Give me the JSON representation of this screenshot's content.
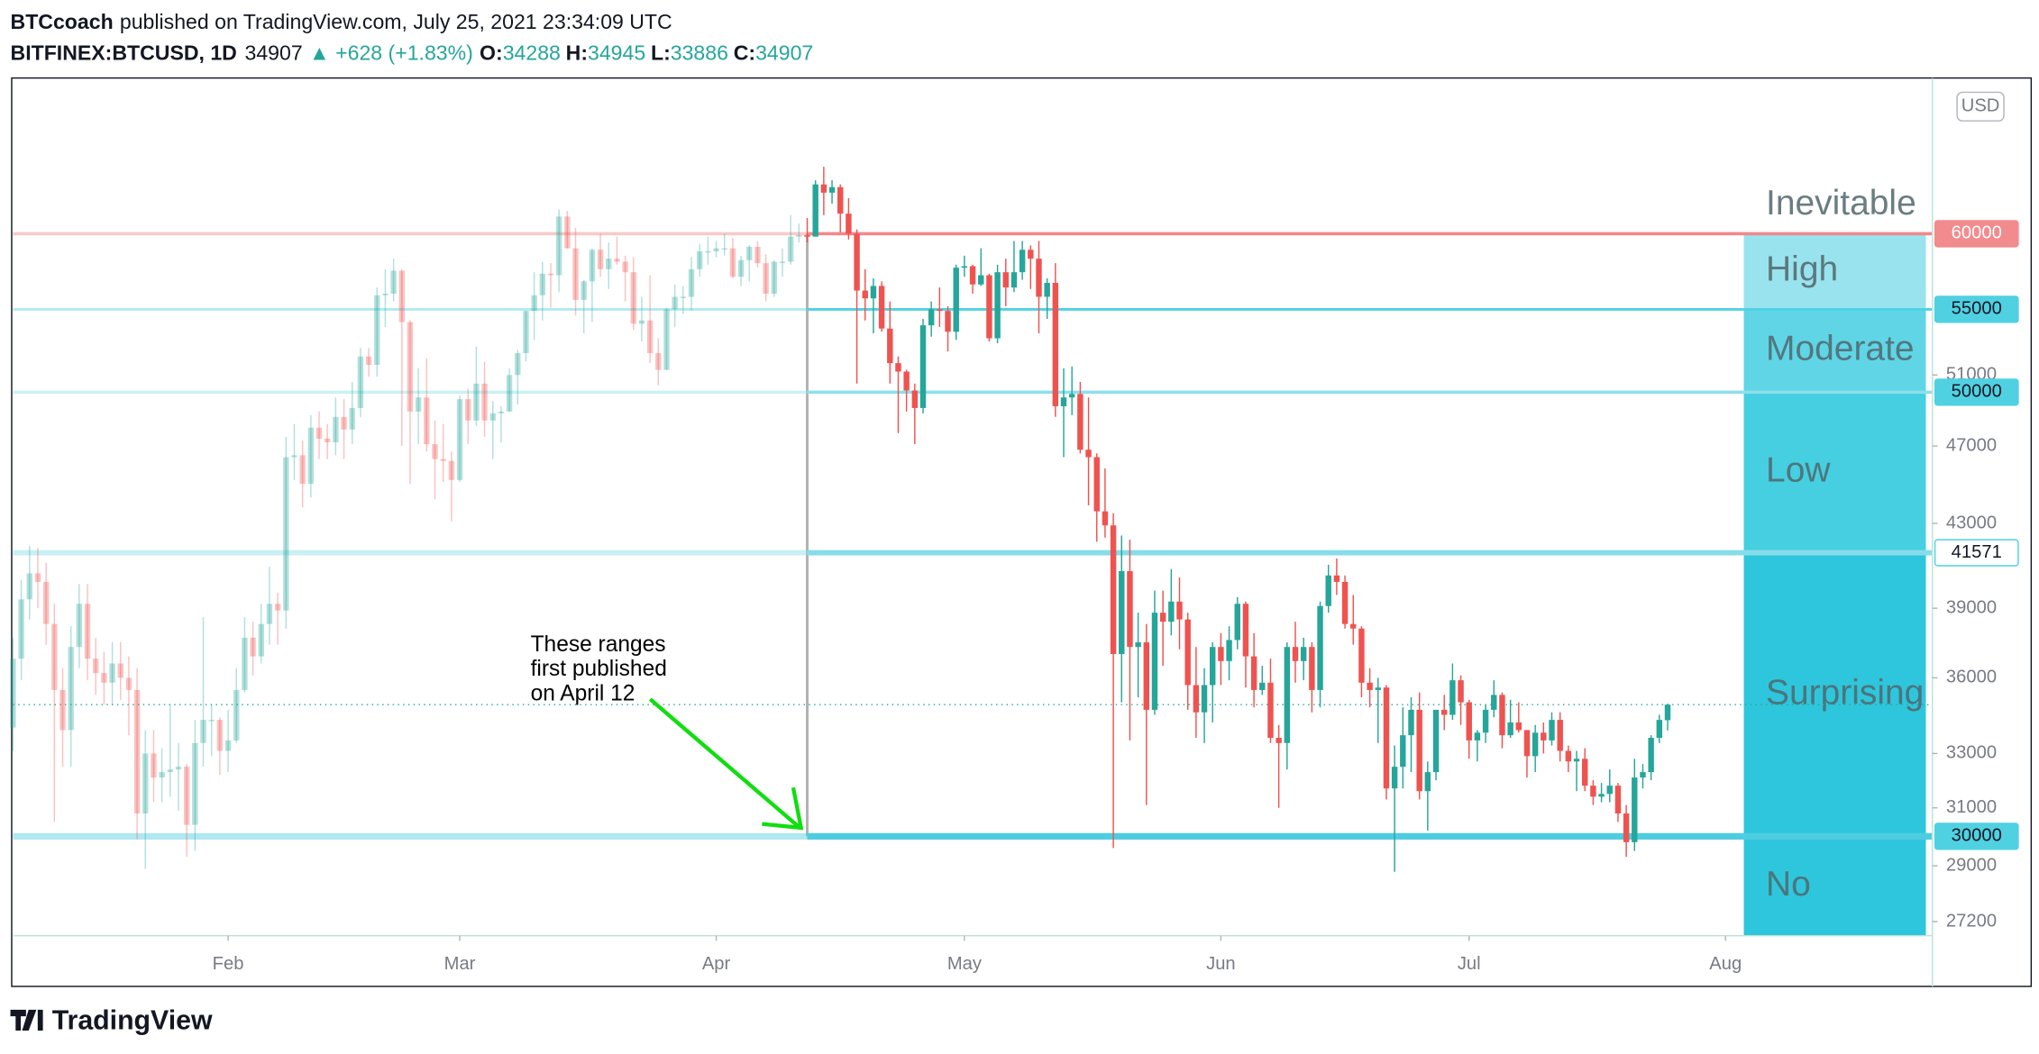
{
  "header": {
    "author": "BTCcoach",
    "published": "published on TradingView.com, July 25, 2021 23:34:09 UTC",
    "symbol": "BITFINEX:BTCUSD, 1D",
    "change": "▲ +628 (+1.83%)",
    "ohlc_labels": [
      "O:",
      "H:",
      "L:",
      "C:"
    ]
  },
  "currency": "USD",
  "footer": {
    "brand": "TradingView"
  },
  "chart_data": {
    "type": "candlestick",
    "log_scale": true,
    "up_color": "#26a69a",
    "down_color": "#ef5350",
    "x": [
      6,
      7,
      8,
      9,
      10,
      11,
      12,
      13,
      14,
      15,
      16,
      17,
      18,
      19,
      20,
      21,
      22,
      23,
      24,
      25,
      26,
      27,
      28,
      29,
      30,
      31,
      32,
      33,
      34,
      35,
      36,
      37,
      38,
      39,
      40,
      41,
      42,
      43,
      44,
      45,
      46,
      47,
      48,
      49,
      50,
      51,
      52,
      53,
      54,
      55,
      56,
      57,
      58,
      59,
      60,
      61,
      62,
      63,
      64,
      65,
      66,
      67,
      68,
      69,
      70,
      71,
      72,
      73,
      74,
      75,
      76,
      77,
      78,
      79,
      80,
      81,
      82,
      83,
      84,
      85,
      86,
      87,
      88,
      89,
      90,
      91,
      92,
      93,
      94,
      95,
      96,
      97,
      98,
      99,
      100,
      101,
      102,
      103,
      104,
      105,
      106,
      107,
      108,
      109,
      110,
      111,
      112,
      113,
      114,
      115,
      116,
      117,
      118,
      119,
      120,
      121,
      122,
      123,
      124,
      125,
      126,
      127,
      128,
      129,
      130,
      131,
      132,
      133,
      134,
      135,
      136,
      137,
      138,
      139,
      140,
      141,
      142,
      143,
      144,
      145,
      146,
      147,
      148,
      149,
      150,
      151,
      152,
      153,
      154,
      155,
      156,
      157,
      158,
      159,
      160,
      161,
      162,
      163,
      164,
      165,
      166,
      167,
      168,
      169,
      170,
      171,
      172,
      173,
      174,
      175,
      176,
      177,
      178,
      179,
      180,
      181,
      182,
      183,
      184,
      185,
      186,
      187,
      188,
      189,
      190,
      191,
      192,
      193,
      194,
      195,
      196,
      197,
      198,
      199,
      200,
      201,
      202,
      203,
      204,
      205,
      206
    ],
    "open": [
      34000,
      36800,
      39400,
      40600,
      40200,
      38300,
      35500,
      33900,
      37300,
      39200,
      36800,
      36200,
      35800,
      36600,
      36000,
      35500,
      30800,
      33000,
      32100,
      32300,
      32400,
      32500,
      30400,
      33400,
      34300,
      34300,
      33100,
      33500,
      35500,
      37700,
      36900,
      38300,
      39200,
      38900,
      46400,
      46500,
      45000,
      48000,
      47400,
      47200,
      48600,
      47900,
      49100,
      52100,
      51600,
      55900,
      56000,
      57500,
      54200,
      48900,
      49700,
      47100,
      46300,
      46200,
      45200,
      49600,
      48400,
      50500,
      48400,
      48800,
      48900,
      51000,
      52300,
      54900,
      55900,
      57300,
      57200,
      61200,
      59000,
      55600,
      56800,
      58900,
      57600,
      58300,
      58100,
      57400,
      54100,
      54300,
      52300,
      51300,
      55000,
      55800,
      55800,
      57600,
      58800,
      58800,
      59000,
      59000,
      57100,
      58200,
      59100,
      58000,
      56000,
      58100,
      58100,
      59800,
      59900,
      59800,
      63500,
      62900,
      63300,
      61400,
      60000,
      56200,
      55700,
      56500,
      53800,
      51700,
      51200,
      50100,
      49100,
      54000,
      55000,
      54900,
      53600,
      57700,
      57800,
      56600,
      57200,
      53200,
      57400,
      56400,
      57400,
      58900,
      58300,
      55800,
      56700,
      49200,
      49700,
      49900,
      46800,
      46400,
      43600,
      42900,
      37000,
      40700,
      37300,
      37500,
      34700,
      38800,
      38400,
      39300,
      38500,
      35700,
      34600,
      35700,
      37300,
      36700,
      37600,
      39200,
      36900,
      35500,
      35800,
      33600,
      33400,
      37300,
      36700,
      37300,
      35500,
      39100,
      40500,
      40200,
      38300,
      38100,
      35800,
      35500,
      35600,
      31700,
      32500,
      33700,
      34700,
      31600,
      32300,
      34700,
      34500,
      35900,
      35000,
      33500,
      33800,
      34700,
      35300,
      33700,
      34200,
      33900,
      32900,
      33800,
      33500,
      34300,
      33100,
      32700,
      32800,
      31800,
      31400,
      31500,
      31800,
      30800,
      29800,
      32100,
      32300,
      33600,
      34288
    ],
    "high": [
      37700,
      40300,
      41900,
      41800,
      41100,
      39200,
      36400,
      38200,
      40100,
      40100,
      37700,
      37100,
      37500,
      37500,
      36900,
      36400,
      33900,
      33900,
      33200,
      34900,
      33400,
      32600,
      34300,
      38600,
      34900,
      34400,
      34700,
      36400,
      38600,
      38400,
      39200,
      40900,
      39700,
      47500,
      48200,
      47300,
      48700,
      48900,
      48200,
      49700,
      49600,
      50600,
      52600,
      52600,
      56400,
      57600,
      58300,
      57600,
      54300,
      51400,
      52000,
      48400,
      48200,
      46700,
      49800,
      50200,
      52700,
      51800,
      49500,
      49200,
      51400,
      52500,
      54900,
      57400,
      58100,
      58000,
      61700,
      61600,
      60400,
      56900,
      59000,
      60000,
      59400,
      59800,
      58500,
      58400,
      55800,
      57200,
      53200,
      55100,
      56600,
      56500,
      58400,
      59300,
      59800,
      59500,
      60000,
      59700,
      58500,
      59200,
      59500,
      58600,
      58200,
      59000,
      61300,
      60700,
      61100,
      63800,
      64800,
      63800,
      63500,
      62500,
      60300,
      57600,
      57000,
      56800,
      55500,
      52100,
      51300,
      50500,
      54400,
      55500,
      56400,
      55200,
      57900,
      58500,
      57900,
      59000,
      57300,
      57900,
      58300,
      59500,
      59500,
      59200,
      59500,
      57000,
      58000,
      51400,
      51500,
      50600,
      49700,
      46600,
      45800,
      43500,
      42400,
      42200,
      38800,
      38300,
      39800,
      39800,
      40800,
      40400,
      38800,
      37300,
      36400,
      37500,
      37900,
      38200,
      39500,
      39300,
      37900,
      36500,
      36800,
      34100,
      37500,
      38400,
      37700,
      37500,
      39300,
      41000,
      41300,
      40500,
      39600,
      38200,
      36400,
      36000,
      35700,
      33300,
      34800,
      35200,
      35400,
      32700,
      34700,
      35300,
      36600,
      36100,
      35100,
      33900,
      34900,
      35900,
      35400,
      35100,
      35000,
      33900,
      34100,
      34200,
      34600,
      34600,
      33300,
      33100,
      33200,
      32000,
      31900,
      32400,
      31900,
      31100,
      32800,
      32600,
      33700,
      34500,
      34945
    ],
    "low": [
      33100,
      35900,
      38500,
      39000,
      37400,
      30500,
      32500,
      32500,
      36400,
      35900,
      35300,
      34900,
      34900,
      35100,
      33700,
      29900,
      28900,
      31200,
      31200,
      31400,
      30900,
      29300,
      29500,
      32500,
      32900,
      32200,
      32300,
      33400,
      35400,
      36100,
      36600,
      37400,
      37400,
      38100,
      45200,
      43800,
      44300,
      46300,
      46300,
      46500,
      46300,
      47100,
      48600,
      50900,
      50900,
      53900,
      55500,
      47000,
      45000,
      47100,
      46700,
      44200,
      45100,
      43100,
      45100,
      47100,
      48100,
      47500,
      46300,
      47200,
      48900,
      49300,
      51800,
      53100,
      54300,
      55100,
      56100,
      59000,
      54600,
      53500,
      54200,
      57100,
      56300,
      57900,
      55500,
      53700,
      53000,
      51700,
      50400,
      51300,
      53900,
      54700,
      54900,
      57100,
      57900,
      58400,
      58500,
      57000,
      56500,
      56800,
      57700,
      55500,
      55800,
      57100,
      57900,
      59400,
      59400,
      59800,
      61300,
      62100,
      60100,
      59600,
      50500,
      54300,
      53500,
      53600,
      50500,
      47700,
      48900,
      47100,
      48800,
      53300,
      53900,
      52400,
      53100,
      57100,
      56000,
      56500,
      53000,
      52900,
      55200,
      56100,
      56900,
      56300,
      53500,
      54400,
      48600,
      46400,
      48700,
      46600,
      43900,
      42100,
      42300,
      29600,
      35000,
      33500,
      35200,
      31100,
      34500,
      36500,
      37800,
      37200,
      34700,
      33600,
      33400,
      34200,
      35700,
      35900,
      37200,
      35600,
      34800,
      35300,
      33400,
      31000,
      32400,
      35800,
      35900,
      34600,
      34800,
      38800,
      39600,
      38100,
      37400,
      35200,
      34800,
      33400,
      31300,
      28800,
      31700,
      32300,
      31300,
      30200,
      32000,
      33900,
      34300,
      34100,
      32800,
      32700,
      33400,
      34400,
      33200,
      33600,
      33800,
      32100,
      32300,
      33000,
      33300,
      32700,
      32300,
      31600,
      31600,
      31100,
      31200,
      31200,
      30500,
      29300,
      29500,
      31700,
      32000,
      33400,
      33886
    ],
    "close": [
      36800,
      39400,
      40600,
      40200,
      38300,
      35500,
      33900,
      37300,
      39200,
      36800,
      36200,
      35800,
      36600,
      36000,
      35500,
      30800,
      33000,
      32100,
      32300,
      32400,
      32500,
      30400,
      33400,
      34300,
      34300,
      33100,
      33500,
      35500,
      37700,
      36900,
      38300,
      39200,
      38900,
      46400,
      46500,
      45000,
      48000,
      47400,
      47200,
      48600,
      47900,
      49100,
      52100,
      51600,
      55900,
      56000,
      57500,
      54200,
      48900,
      49700,
      47100,
      46300,
      46200,
      45200,
      49600,
      48400,
      50500,
      48400,
      48800,
      48900,
      51000,
      52300,
      54900,
      55900,
      57300,
      57200,
      61200,
      59000,
      55600,
      56800,
      58900,
      57600,
      58300,
      58100,
      57400,
      54100,
      54300,
      52300,
      51300,
      55000,
      55800,
      55800,
      57600,
      58800,
      58800,
      59000,
      59000,
      57100,
      58200,
      59100,
      58000,
      56000,
      58100,
      58100,
      59800,
      59900,
      59800,
      63500,
      62900,
      63300,
      61400,
      60000,
      56200,
      55700,
      56500,
      53800,
      51700,
      51200,
      50100,
      49100,
      54000,
      55000,
      54900,
      53600,
      57700,
      57800,
      56600,
      57200,
      53200,
      57400,
      56400,
      57400,
      58900,
      58300,
      55800,
      56700,
      49200,
      49700,
      49900,
      46800,
      46400,
      43600,
      42900,
      37000,
      40700,
      37300,
      37500,
      34700,
      38800,
      38400,
      39300,
      38500,
      35700,
      34600,
      35700,
      37300,
      36700,
      37600,
      39200,
      36900,
      35500,
      35800,
      33600,
      33400,
      37300,
      36700,
      37300,
      35500,
      39100,
      40500,
      40200,
      38300,
      38100,
      35800,
      35500,
      35600,
      31700,
      32500,
      33700,
      34700,
      31600,
      32300,
      34700,
      34500,
      35900,
      35000,
      33500,
      33800,
      34700,
      35300,
      33700,
      34200,
      33900,
      32900,
      33800,
      33500,
      34300,
      33100,
      32700,
      32800,
      31800,
      31400,
      31500,
      31800,
      30800,
      29800,
      32100,
      32300,
      33600,
      34300,
      34907
    ],
    "xlim": [
      6,
      238
    ],
    "xticks": [
      {
        "value": 32,
        "label": "Feb"
      },
      {
        "value": 60,
        "label": "Mar"
      },
      {
        "value": 91,
        "label": "Apr"
      },
      {
        "value": 121,
        "label": "May"
      },
      {
        "value": 152,
        "label": "Jun"
      },
      {
        "value": 182,
        "label": "Jul"
      },
      {
        "value": 213,
        "label": "Aug"
      }
    ],
    "ylim": [
      26760,
      71660
    ],
    "yticks": [
      27200,
      29000,
      31000,
      33000,
      36000,
      39000,
      43000,
      47000,
      51000
    ],
    "vline": 102,
    "levels": [
      {
        "value": 60000,
        "color": "#f0898b",
        "badge": "#f28b8d",
        "text_color": "#ffffff",
        "width": 2.5
      },
      {
        "value": 55000,
        "color": "#4fd1e2",
        "badge": "#4fd1e2",
        "text_color": "#131722",
        "width": 2
      },
      {
        "value": 50000,
        "color": "#8ce0ec",
        "badge": "#4fd1e2",
        "text_color": "#131722",
        "width": 2.5
      },
      {
        "value": 41571,
        "color": "#86dde9",
        "badge": "#ffffff",
        "text_color": "#131722",
        "width": 4
      },
      {
        "value": 30000,
        "color": "#4fcde0",
        "badge": "#4fd1e2",
        "text_color": "#131722",
        "width": 5
      }
    ],
    "zones": [
      {
        "name": "Inevitable",
        "color": null
      },
      {
        "name": "High",
        "color": "#98e3ee"
      },
      {
        "name": "Moderate",
        "color": "#5fd5e6"
      },
      {
        "name": "Low",
        "color": "#45cfe1"
      },
      {
        "name": "Surprising",
        "color": "#2ec6dc"
      },
      {
        "name": "No",
        "color": "#2ec6dc"
      }
    ],
    "annotation": [
      "These ranges",
      "first published",
      "on April 12"
    ],
    "annotation_color": "#11dd11"
  }
}
